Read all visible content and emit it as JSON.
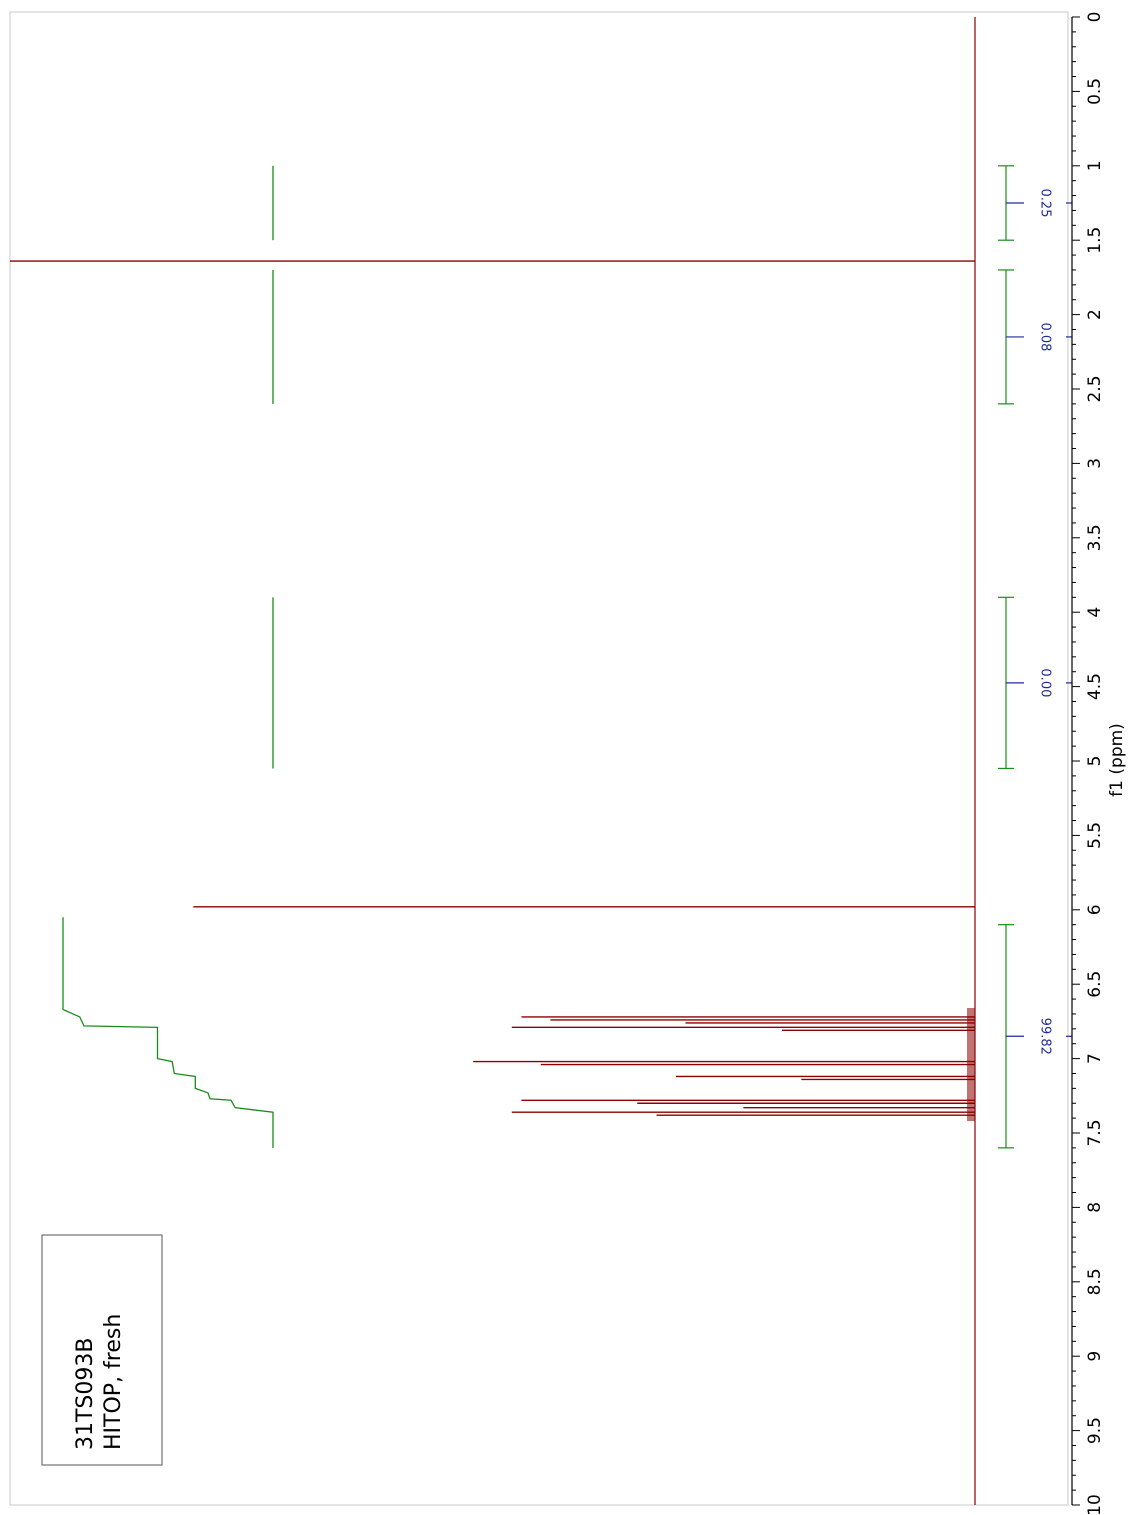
{
  "chart_data": {
    "type": "line",
    "orientation": "rotated-90",
    "xlabel": "f1 (ppm)",
    "ylabel": "",
    "xlim": [
      0,
      10
    ],
    "x_ticks": [
      "0",
      "0.5",
      "1",
      "1.5",
      "2",
      "2.5",
      "3",
      "3.5",
      "4",
      "4.5",
      "5",
      "5.5",
      "6",
      "6.5",
      "7",
      "7.5",
      "8",
      "8.5",
      "9",
      "9.5",
      "10"
    ],
    "grid": false,
    "sample_box": {
      "line1": "31TS093B",
      "line2": "HITOP, fresh"
    },
    "peaks": [
      {
        "ppm": 1.64,
        "height": 1.0
      },
      {
        "ppm": 5.98,
        "height": 0.81
      },
      {
        "ppm": 6.72,
        "height": 0.47
      },
      {
        "ppm": 6.74,
        "height": 0.44
      },
      {
        "ppm": 6.76,
        "height": 0.3
      },
      {
        "ppm": 6.79,
        "height": 0.48
      },
      {
        "ppm": 6.81,
        "height": 0.2
      },
      {
        "ppm": 7.02,
        "height": 0.52
      },
      {
        "ppm": 7.04,
        "height": 0.45
      },
      {
        "ppm": 7.12,
        "height": 0.31
      },
      {
        "ppm": 7.14,
        "height": 0.18
      },
      {
        "ppm": 7.28,
        "height": 0.47
      },
      {
        "ppm": 7.3,
        "height": 0.35
      },
      {
        "ppm": 7.33,
        "height": 0.24
      },
      {
        "ppm": 7.36,
        "height": 0.48
      },
      {
        "ppm": 7.38,
        "height": 0.33
      }
    ],
    "integrals": [
      {
        "from": 1.0,
        "to": 1.5,
        "value": "0.25"
      },
      {
        "from": 1.7,
        "to": 2.6,
        "value": "0.08"
      },
      {
        "from": 3.9,
        "to": 5.05,
        "value": "0.00"
      },
      {
        "from": 6.1,
        "to": 7.6,
        "value": "99.82"
      }
    ],
    "integral_curves": [
      {
        "points": [
          [
            1.0,
            0.0
          ],
          [
            1.5,
            0.0
          ]
        ]
      },
      {
        "points": [
          [
            1.7,
            0.0
          ],
          [
            2.6,
            0.0
          ]
        ]
      },
      {
        "points": [
          [
            3.9,
            0.0
          ],
          [
            5.05,
            0.0
          ]
        ]
      },
      {
        "points": [
          [
            6.05,
            1.0
          ],
          [
            6.67,
            1.0
          ],
          [
            6.72,
            0.92
          ],
          [
            6.78,
            0.9
          ],
          [
            6.79,
            0.55
          ],
          [
            7.0,
            0.55
          ],
          [
            7.02,
            0.48
          ],
          [
            7.1,
            0.47
          ],
          [
            7.12,
            0.37
          ],
          [
            7.2,
            0.37
          ],
          [
            7.23,
            0.31
          ],
          [
            7.27,
            0.3
          ],
          [
            7.28,
            0.2
          ],
          [
            7.33,
            0.18
          ],
          [
            7.36,
            0.0
          ],
          [
            7.6,
            0.0
          ]
        ]
      }
    ],
    "colors": {
      "spectrum": "#8b0000",
      "integral_curve": "#1a8c1a",
      "integral_bracket": "#1a8c1a",
      "integral_label": "#1f2a9c",
      "axis": "#000000"
    }
  }
}
